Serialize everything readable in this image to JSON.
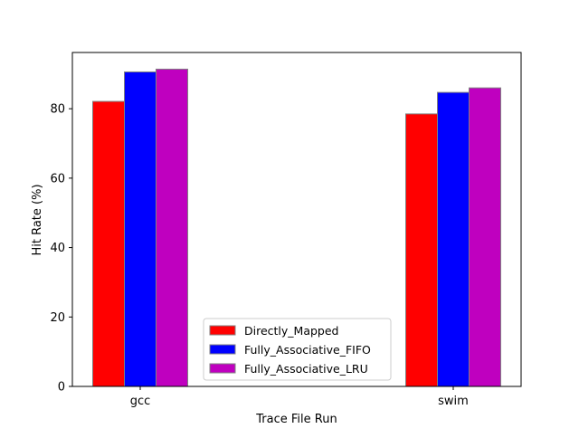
{
  "chart_data": {
    "type": "bar",
    "title": "",
    "xlabel": "Trace File Run",
    "ylabel": "Hit Rate (%)",
    "categories": [
      "gcc",
      "swim"
    ],
    "ylim": [
      0,
      96.2
    ],
    "yticks": [
      0,
      20,
      40,
      60,
      80
    ],
    "grid": false,
    "legend_position": "lower-center",
    "series": [
      {
        "name": "Directly_Mapped",
        "color": "#ff0000",
        "values": [
          82.1,
          78.5
        ]
      },
      {
        "name": "Fully_Associative_FIFO",
        "color": "#0000ff",
        "values": [
          90.6,
          84.7
        ]
      },
      {
        "name": "Fully_Associative_LRU",
        "color": "#bf00bf",
        "values": [
          91.4,
          86.0
        ]
      }
    ],
    "bar_edge_color": "#808080"
  }
}
